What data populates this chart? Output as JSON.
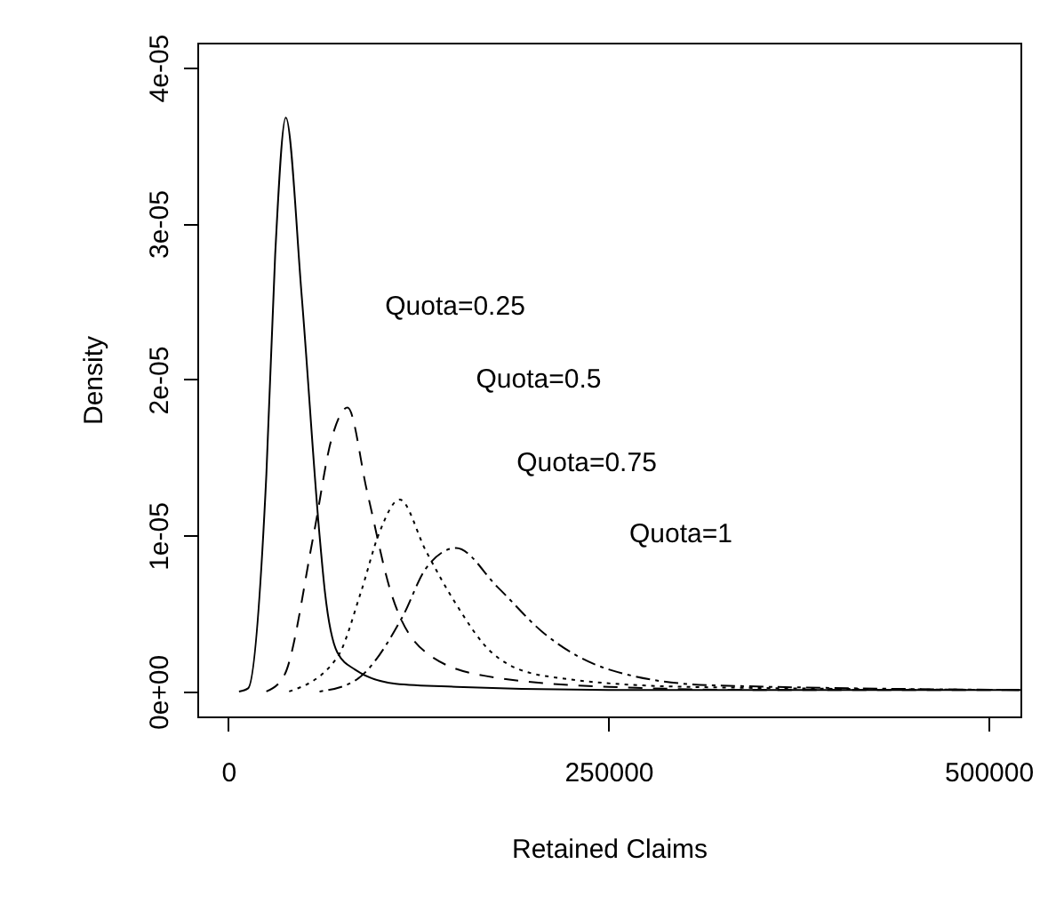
{
  "chart_data": {
    "type": "line",
    "xlabel": "Retained  Claims",
    "ylabel": "Density",
    "xlim": [
      -20400,
      521000
    ],
    "ylim": [
      -1.6e-06,
      4.16e-05
    ],
    "xticks": [
      0,
      250000,
      500000
    ],
    "yticks": [
      {
        "value": 0,
        "label": "0e+00"
      },
      {
        "value": 1e-05,
        "label": "1e-05"
      },
      {
        "value": 2e-05,
        "label": "2e-05"
      },
      {
        "value": 3e-05,
        "label": "3e-05"
      },
      {
        "value": 4e-05,
        "label": "4e-05"
      }
    ],
    "grid": false,
    "marker": "none",
    "series": [
      {
        "color": "#000000",
        "line_style": "solid",
        "x": [
          7000,
          13000,
          25000,
          30800,
          37800,
          48300,
          60000,
          63500,
          71700,
          83400,
          110000,
          150000,
          250000,
          350000,
          521000
        ],
        "values": [
          0,
          2e-07,
          1.39e-05,
          2.8e-05,
          3.68e-05,
          2.53e-05,
          1e-05,
          6.4e-06,
          2.5e-06,
          1.4e-06,
          5e-07,
          3e-07,
          1e-07,
          1e-07,
          1e-07
        ]
      },
      {
        "color": "#000000",
        "line_style": "dashed",
        "x": [
          25000,
          36600,
          56000,
          67900,
          78400,
          91300,
          106800,
          130000,
          169000,
          250000,
          350000,
          521000
        ],
        "values": [
          0,
          1e-06,
          1e-05,
          1.62e-05,
          1.82e-05,
          1.28e-05,
          6.4e-06,
          2.5e-06,
          1e-06,
          3e-07,
          1e-07,
          1e-07
        ]
      },
      {
        "color": "#000000",
        "line_style": "dotted",
        "x": [
          40000,
          71700,
          87300,
          99000,
          112700,
          130000,
          149800,
          173200,
          208000,
          300000,
          521000
        ],
        "values": [
          0,
          2.2e-06,
          6.4e-06,
          1.01e-05,
          1.23e-05,
          9e-06,
          5.6e-06,
          2.5e-06,
          1e-06,
          3e-07,
          1e-07
        ]
      },
      {
        "color": "#000000",
        "line_style": "dotdash",
        "x": [
          60000,
          83400,
          114600,
          130000,
          149800,
          177000,
          208000,
          250700,
          317000,
          521000
        ],
        "values": [
          0,
          7e-07,
          4.8e-06,
          7.9e-06,
          9.2e-06,
          6.7e-06,
          3.7e-06,
          1.4e-06,
          4e-07,
          1e-07
        ]
      }
    ],
    "annotations": [
      "Quota=0.25",
      "Quota=0.5",
      "Quota=0.75",
      "Quota=1"
    ]
  }
}
